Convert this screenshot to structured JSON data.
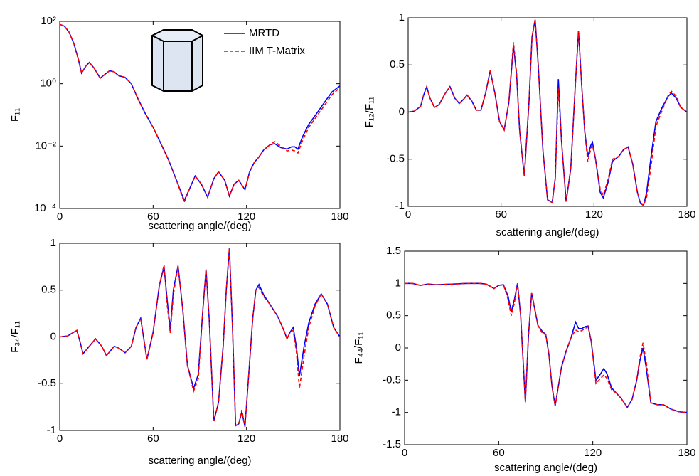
{
  "chart_data": [
    {
      "type": "line",
      "yscale": "log",
      "ylabel": "F₁₁",
      "xlabel": "scattering angle/(deg)",
      "xlim": [
        0,
        180
      ],
      "xticks": [
        0,
        60,
        120,
        180
      ],
      "ylim": [
        0.0001,
        100
      ],
      "yticks": [
        {
          "value": 100,
          "label": "10²"
        },
        {
          "value": 1,
          "label": "10⁰"
        },
        {
          "value": 0.01,
          "label": "10⁻²"
        },
        {
          "value": 0.0001,
          "label": "10⁻⁴"
        }
      ],
      "x": [
        0,
        3,
        6,
        9,
        12,
        14,
        17,
        19,
        22,
        26,
        29,
        32,
        35,
        38,
        42,
        46,
        50,
        55,
        60,
        65,
        70,
        75,
        80,
        84,
        87,
        91,
        95,
        99,
        102,
        106,
        109,
        112,
        115,
        119,
        122,
        125,
        128,
        131,
        135,
        138,
        142,
        146,
        149,
        151,
        153,
        156,
        160,
        165,
        170,
        175,
        180
      ],
      "series": [
        {
          "name": "MRTD",
          "color": "#0000ff",
          "linestyle": "solid",
          "values": [
            80,
            70,
            45,
            20,
            6,
            2.2,
            3.8,
            4.8,
            3.2,
            1.5,
            2.0,
            2.6,
            2.4,
            1.8,
            1.6,
            1.0,
            0.35,
            0.11,
            0.04,
            0.012,
            0.0035,
            0.0008,
            0.00018,
            0.0005,
            0.0011,
            0.0006,
            0.00023,
            0.0009,
            0.0015,
            0.0008,
            0.00025,
            0.0006,
            0.0008,
            0.0004,
            0.0015,
            0.003,
            0.0045,
            0.0075,
            0.011,
            0.012,
            0.009,
            0.008,
            0.0095,
            0.0095,
            0.008,
            0.02,
            0.05,
            0.11,
            0.25,
            0.55,
            0.85
          ]
        },
        {
          "name": "IIM T-Matrix",
          "color": "#ff0000",
          "linestyle": "dashed",
          "values": [
            80,
            70,
            45,
            20,
            6,
            2.2,
            3.8,
            4.8,
            3.2,
            1.5,
            2.0,
            2.6,
            2.4,
            1.8,
            1.6,
            1.0,
            0.35,
            0.11,
            0.04,
            0.012,
            0.0035,
            0.0008,
            0.00016,
            0.0005,
            0.0011,
            0.0006,
            0.00023,
            0.0009,
            0.0015,
            0.0008,
            0.00025,
            0.0006,
            0.0008,
            0.0004,
            0.0015,
            0.003,
            0.0045,
            0.0075,
            0.011,
            0.014,
            0.01,
            0.007,
            0.0075,
            0.007,
            0.006,
            0.015,
            0.04,
            0.09,
            0.2,
            0.45,
            0.75
          ]
        }
      ]
    },
    {
      "type": "line",
      "ylabel": "F₁₂/F₁₁",
      "xlabel": "scattering angle/(deg)",
      "xlim": [
        0,
        180
      ],
      "xticks": [
        0,
        60,
        120,
        180
      ],
      "ylim": [
        -1,
        1
      ],
      "yticks": [
        -1,
        -0.5,
        0,
        0.5,
        1
      ],
      "x": [
        0,
        4,
        8,
        10,
        12,
        14,
        17,
        20,
        24,
        27,
        30,
        33,
        36,
        38,
        41,
        44,
        47,
        50,
        53,
        56,
        59,
        62,
        65,
        68,
        70,
        72,
        75,
        78,
        80,
        82,
        84,
        87,
        90,
        93,
        95,
        97,
        99,
        102,
        105,
        108,
        110,
        112,
        114,
        116,
        118,
        119,
        121,
        124,
        126,
        129,
        132,
        136,
        139,
        142,
        145,
        148,
        150,
        152,
        154,
        157,
        160,
        164,
        168,
        170,
        173,
        176,
        180
      ],
      "series": [
        {
          "color": "#0000ff",
          "linestyle": "solid",
          "values": [
            0,
            0.01,
            0.06,
            0.18,
            0.27,
            0.15,
            0.05,
            0.08,
            0.2,
            0.27,
            0.15,
            0.09,
            0.14,
            0.18,
            0.12,
            0.02,
            0.02,
            0.2,
            0.44,
            0.2,
            -0.1,
            -0.19,
            0.1,
            0.7,
            0.4,
            -0.2,
            -0.68,
            0.1,
            0.8,
            0.98,
            0.5,
            -0.4,
            -0.93,
            -0.96,
            -0.7,
            0.35,
            -0.3,
            -0.95,
            -0.6,
            0.3,
            0.86,
            0.3,
            -0.2,
            -0.47,
            -0.35,
            -0.32,
            -0.5,
            -0.85,
            -0.91,
            -0.75,
            -0.52,
            -0.47,
            -0.4,
            -0.37,
            -0.55,
            -0.85,
            -0.97,
            -0.99,
            -0.85,
            -0.45,
            -0.1,
            0.05,
            0.17,
            0.2,
            0.15,
            0.05,
            0
          ]
        },
        {
          "color": "#ff0000",
          "linestyle": "dashed",
          "values": [
            0,
            0.01,
            0.06,
            0.18,
            0.27,
            0.15,
            0.05,
            0.08,
            0.2,
            0.27,
            0.15,
            0.09,
            0.14,
            0.18,
            0.12,
            0.02,
            0.02,
            0.2,
            0.44,
            0.2,
            -0.1,
            -0.19,
            0.1,
            0.74,
            0.42,
            -0.2,
            -0.68,
            0.1,
            0.8,
            0.98,
            0.5,
            -0.4,
            -0.93,
            -0.96,
            -0.7,
            0.25,
            -0.3,
            -0.95,
            -0.6,
            0.3,
            0.86,
            0.3,
            -0.2,
            -0.53,
            -0.38,
            -0.35,
            -0.5,
            -0.82,
            -0.88,
            -0.72,
            -0.5,
            -0.47,
            -0.4,
            -0.37,
            -0.55,
            -0.85,
            -0.97,
            -0.99,
            -0.9,
            -0.55,
            -0.15,
            0.02,
            0.18,
            0.22,
            0.17,
            0.05,
            0
          ]
        }
      ]
    },
    {
      "type": "line",
      "ylabel": "F₃₄/F₁₁",
      "xlabel": "scattering angle/(deg)",
      "xlim": [
        0,
        180
      ],
      "xticks": [
        0,
        60,
        120,
        180
      ],
      "ylim": [
        -1,
        1
      ],
      "yticks": [
        -1,
        -0.5,
        0,
        0.5,
        1
      ],
      "x": [
        0,
        5,
        9,
        11,
        13,
        15,
        19,
        23,
        27,
        30,
        33,
        35,
        38,
        42,
        46,
        49,
        52,
        56,
        60,
        64,
        67,
        69,
        71,
        73,
        76,
        79,
        82,
        86,
        89,
        92,
        94,
        96,
        99,
        102,
        105,
        107,
        109,
        111,
        113,
        115,
        117,
        119,
        121,
        124,
        126,
        128,
        131,
        135,
        140,
        144,
        146,
        148,
        150,
        152,
        154,
        157,
        160,
        164,
        168,
        172,
        176,
        180
      ],
      "series": [
        {
          "color": "#0000ff",
          "linestyle": "solid",
          "values": [
            0,
            0.01,
            0.05,
            0.07,
            -0.05,
            -0.18,
            -0.1,
            -0.02,
            -0.1,
            -0.2,
            -0.14,
            -0.1,
            -0.12,
            -0.17,
            -0.1,
            0.1,
            0.2,
            -0.24,
            0.05,
            0.55,
            0.75,
            0.4,
            0.08,
            0.5,
            0.76,
            0.3,
            -0.3,
            -0.55,
            -0.4,
            0.3,
            0.72,
            0.2,
            -0.9,
            -0.7,
            -0.1,
            0.5,
            0.95,
            0.1,
            -0.95,
            -0.93,
            -0.8,
            -0.96,
            -0.5,
            0.2,
            0.5,
            0.56,
            0.45,
            0.35,
            0.22,
            0.07,
            -0.02,
            0.05,
            0.1,
            -0.1,
            -0.42,
            -0.1,
            0.15,
            0.35,
            0.46,
            0.35,
            0.1,
            0
          ]
        },
        {
          "color": "#ff0000",
          "linestyle": "dashed",
          "values": [
            0,
            0.01,
            0.05,
            0.07,
            -0.05,
            -0.18,
            -0.1,
            -0.02,
            -0.1,
            -0.2,
            -0.14,
            -0.1,
            -0.12,
            -0.17,
            -0.1,
            0.1,
            0.2,
            -0.24,
            0.05,
            0.55,
            0.77,
            0.35,
            0.04,
            0.45,
            0.76,
            0.3,
            -0.3,
            -0.58,
            -0.45,
            0.3,
            0.72,
            0.2,
            -0.9,
            -0.7,
            -0.1,
            0.5,
            0.95,
            0.1,
            -0.95,
            -0.93,
            -0.78,
            -0.96,
            -0.5,
            0.2,
            0.5,
            0.53,
            0.43,
            0.35,
            0.22,
            0.07,
            -0.02,
            0.05,
            0.07,
            -0.15,
            -0.55,
            -0.2,
            0.1,
            0.33,
            0.46,
            0.35,
            0.1,
            0
          ]
        }
      ]
    },
    {
      "type": "line",
      "ylabel": "F₄₄/F₁₁",
      "xlabel": "scattering angle/(deg)",
      "xlim": [
        0,
        180
      ],
      "xticks": [
        0,
        60,
        120,
        180
      ],
      "ylim": [
        -1.5,
        1.5
      ],
      "yticks": [
        -1.5,
        -1,
        -0.5,
        0,
        0.5,
        1,
        1.5
      ],
      "x": [
        0,
        5,
        10,
        15,
        20,
        30,
        40,
        48,
        52,
        55,
        57,
        60,
        63,
        66,
        68,
        70,
        72,
        74,
        77,
        79,
        81,
        83,
        85,
        88,
        90,
        92,
        94,
        96,
        98,
        100,
        103,
        106,
        109,
        111,
        113,
        115,
        117,
        119,
        122,
        125,
        127,
        129,
        132,
        135,
        138,
        142,
        145,
        148,
        150,
        152,
        154,
        157,
        161,
        165,
        170,
        175,
        180
      ],
      "series": [
        {
          "color": "#0000ff",
          "linestyle": "solid",
          "values": [
            1,
            1,
            0.97,
            0.99,
            0.98,
            0.99,
            1,
            1,
            0.99,
            0.95,
            0.92,
            0.97,
            0.98,
            0.8,
            0.56,
            0.75,
            1.0,
            0.5,
            -0.84,
            0.2,
            0.85,
            0.6,
            0.35,
            0.25,
            0.21,
            -0.1,
            -0.6,
            -0.9,
            -0.6,
            -0.3,
            -0.05,
            0.15,
            0.4,
            0.3,
            0.3,
            0.33,
            0.34,
            0.1,
            -0.5,
            -0.4,
            -0.32,
            -0.4,
            -0.62,
            -0.7,
            -0.78,
            -0.92,
            -0.8,
            -0.5,
            -0.2,
            0,
            -0.3,
            -0.85,
            -0.88,
            -0.88,
            -0.95,
            -0.99,
            -1
          ]
        },
        {
          "color": "#ff0000",
          "linestyle": "dashed",
          "values": [
            1,
            1,
            0.97,
            0.99,
            0.98,
            0.99,
            1,
            1,
            0.99,
            0.95,
            0.92,
            0.97,
            0.98,
            0.75,
            0.5,
            0.7,
            1.0,
            0.5,
            -0.84,
            0.2,
            0.85,
            0.6,
            0.35,
            0.22,
            0.21,
            -0.1,
            -0.6,
            -0.9,
            -0.6,
            -0.3,
            -0.05,
            0.15,
            0.28,
            0.25,
            0.27,
            0.3,
            0.33,
            0.1,
            -0.55,
            -0.47,
            -0.42,
            -0.47,
            -0.65,
            -0.7,
            -0.78,
            -0.92,
            -0.8,
            -0.5,
            -0.15,
            0.08,
            -0.2,
            -0.85,
            -0.88,
            -0.88,
            -0.95,
            -0.99,
            -1
          ]
        }
      ]
    }
  ]
}
